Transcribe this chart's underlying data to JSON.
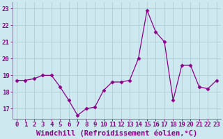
{
  "x": [
    0,
    1,
    2,
    3,
    4,
    5,
    6,
    7,
    8,
    9,
    10,
    11,
    12,
    13,
    14,
    15,
    16,
    17,
    18,
    19,
    20,
    21,
    22,
    23
  ],
  "y": [
    18.7,
    18.7,
    18.8,
    19.0,
    19.0,
    18.3,
    17.5,
    16.6,
    17.0,
    17.1,
    18.1,
    18.6,
    18.6,
    18.7,
    20.0,
    22.9,
    21.6,
    21.0,
    17.5,
    19.6,
    19.6,
    18.3,
    18.2,
    18.7
  ],
  "line_color": "#8B008B",
  "marker": "D",
  "marker_size": 2.5,
  "bg_color": "#cde8ef",
  "grid_color": "#b0cdd4",
  "xlabel": "Windchill (Refroidissement éolien,°C)",
  "ylim": [
    16.4,
    23.4
  ],
  "yticks": [
    17,
    18,
    19,
    20,
    21,
    22,
    23
  ],
  "xticks": [
    0,
    1,
    2,
    3,
    4,
    5,
    6,
    7,
    8,
    9,
    10,
    11,
    12,
    13,
    14,
    15,
    16,
    17,
    18,
    19,
    20,
    21,
    22,
    23
  ],
  "tick_label_fontsize": 6.5,
  "xlabel_fontsize": 7.5,
  "axis_color": "#7a7a9a",
  "tick_color": "#8B008B"
}
